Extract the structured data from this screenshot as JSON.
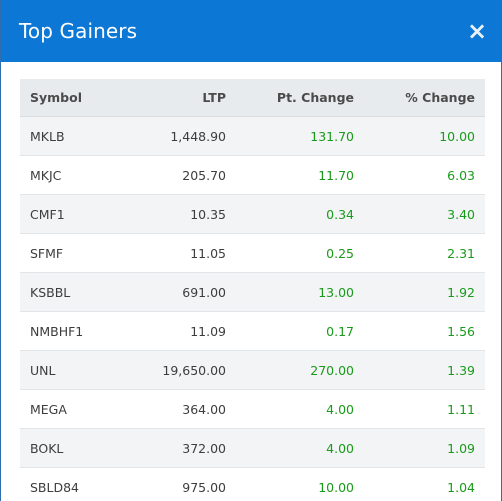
{
  "modal": {
    "title": "Top Gainers",
    "close_icon": "×"
  },
  "table": {
    "headers": {
      "symbol": "Symbol",
      "ltp": "LTP",
      "pt_change": "Pt. Change",
      "pct_change": "% Change"
    },
    "rows": [
      {
        "symbol": "MKLB",
        "ltp": "1,448.90",
        "pt_change": "131.70",
        "pct_change": "10.00"
      },
      {
        "symbol": "MKJC",
        "ltp": "205.70",
        "pt_change": "11.70",
        "pct_change": "6.03"
      },
      {
        "symbol": "CMF1",
        "ltp": "10.35",
        "pt_change": "0.34",
        "pct_change": "3.40"
      },
      {
        "symbol": "SFMF",
        "ltp": "11.05",
        "pt_change": "0.25",
        "pct_change": "2.31"
      },
      {
        "symbol": "KSBBL",
        "ltp": "691.00",
        "pt_change": "13.00",
        "pct_change": "1.92"
      },
      {
        "symbol": "NMBHF1",
        "ltp": "11.09",
        "pt_change": "0.17",
        "pct_change": "1.56"
      },
      {
        "symbol": "UNL",
        "ltp": "19,650.00",
        "pt_change": "270.00",
        "pct_change": "1.39"
      },
      {
        "symbol": "MEGA",
        "ltp": "364.00",
        "pt_change": "4.00",
        "pct_change": "1.11"
      },
      {
        "symbol": "BOKL",
        "ltp": "372.00",
        "pt_change": "4.00",
        "pct_change": "1.09"
      },
      {
        "symbol": "SBLD84",
        "ltp": "975.00",
        "pt_change": "10.00",
        "pct_change": "1.04"
      }
    ]
  },
  "colors": {
    "header_bg": "#0c77d4",
    "positive": "#1a9a1a",
    "table_header_bg": "#e8ebee"
  }
}
